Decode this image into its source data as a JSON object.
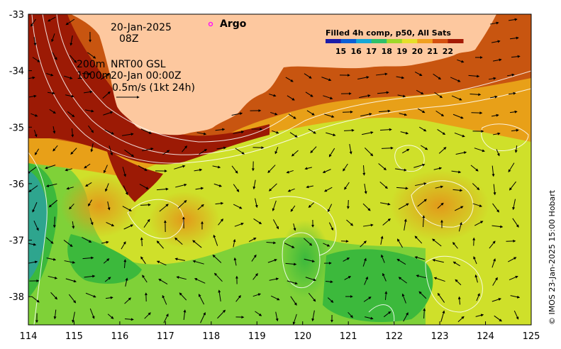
{
  "colors": {
    "land": "#fdc89f",
    "ocean_base": "#cfe02a",
    "warm": "#e8a018",
    "hot": "#c85510",
    "very_hot": "#9c1a05",
    "cool": "#7fd138",
    "cooler": "#3cb93c",
    "coolest": "#2ea58e",
    "contour": "#ffffff",
    "arrow": "#000000",
    "argo_marker": "#ff00ff"
  },
  "map": {
    "lon_range": [
      114,
      125
    ],
    "lat_range": [
      -38.5,
      -33
    ],
    "x_ticks": [
      "114",
      "115",
      "116",
      "117",
      "118",
      "119",
      "120",
      "121",
      "122",
      "123",
      "124",
      "125"
    ],
    "y_ticks": [
      "-33",
      "-34",
      "-35",
      "-36",
      "-37",
      "-38"
    ],
    "y_tick_values": [
      -33,
      -34,
      -35,
      -36,
      -37,
      -38
    ]
  },
  "annotations": {
    "date": "20-Jan-2025",
    "time": "08Z",
    "depth_line_1": "200m",
    "depth_line_2": "1000m",
    "source": "NRT00 GSL",
    "source_time": "20-Jan 00:00Z",
    "scale_label": "0.5m/s (1kt 24h)",
    "argo_label": "Argo"
  },
  "legend": {
    "title": "Filled 4h comp, p50, All Sats",
    "ticks": [
      "15",
      "16",
      "17",
      "18",
      "19",
      "20",
      "21",
      "22"
    ],
    "colors": [
      "#1c1ca8",
      "#0b5fd6",
      "#16a7d6",
      "#2fc06a",
      "#9ed82a",
      "#e6e02a",
      "#f0a020",
      "#d55010",
      "#a51a05"
    ]
  },
  "credit": "© IMOS 23-Jan-2025 15:00 Hobart"
}
